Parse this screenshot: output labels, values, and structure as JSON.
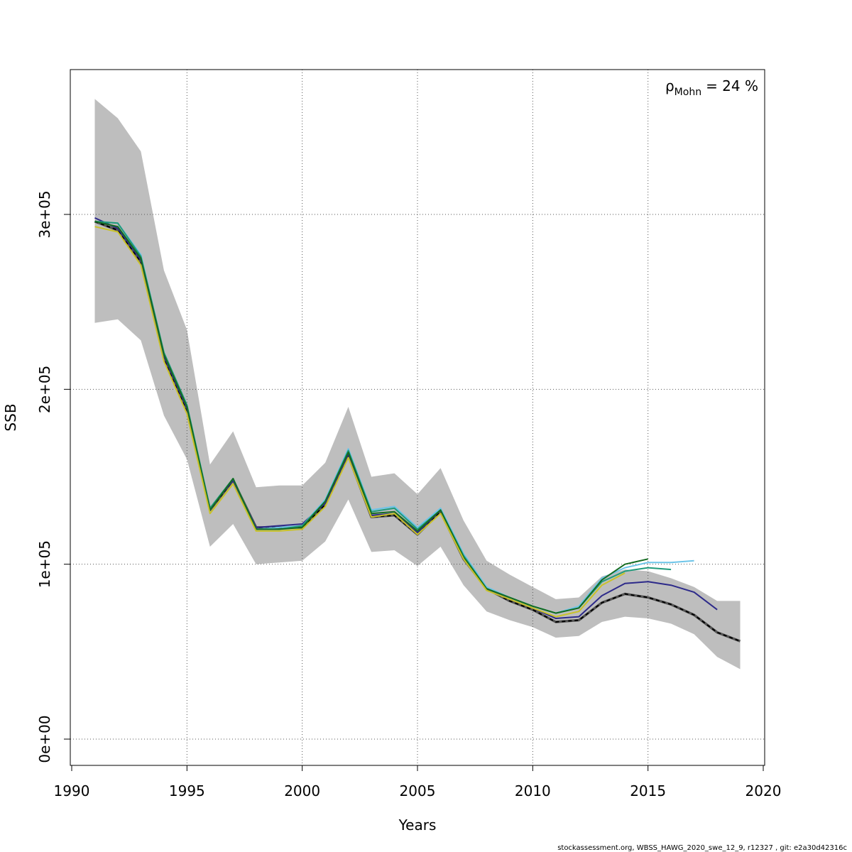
{
  "chart_data": {
    "type": "line",
    "title": "",
    "xlabel": "Years",
    "ylabel": "SSB",
    "xlim": [
      1990,
      2020
    ],
    "ylim": [
      0,
      380000
    ],
    "x_ticks": [
      1990,
      1995,
      2000,
      2005,
      2010,
      2015,
      2020
    ],
    "y_ticks": [
      0,
      100000,
      200000,
      300000
    ],
    "y_tick_labels": [
      "0e+00",
      "1e+05",
      "2e+05",
      "3e+05"
    ],
    "grid": true,
    "annotation": {
      "symbol": "ρ",
      "subscript": "Mohn",
      "text": "= 24 %"
    },
    "credit": "stockassessment.org, WBSS_HAWG_2020_swe_12_9, r12327 , git: e2a30d42316c",
    "confidence_band": {
      "color": "#bebebe",
      "x": [
        1991,
        1992,
        1993,
        1994,
        1995,
        1996,
        1997,
        1998,
        1999,
        2000,
        2001,
        2002,
        2003,
        2004,
        2005,
        2006,
        2007,
        2008,
        2009,
        2010,
        2011,
        2012,
        2013,
        2014,
        2015,
        2016,
        2017,
        2018,
        2019
      ],
      "upper": [
        366000,
        355000,
        336000,
        268000,
        234000,
        157000,
        176000,
        144000,
        145000,
        145000,
        158000,
        190000,
        150000,
        152000,
        140000,
        155000,
        125000,
        102000,
        94000,
        87000,
        80000,
        81000,
        93000,
        97000,
        96000,
        92000,
        87000,
        79000,
        79000
      ],
      "lower": [
        238000,
        240000,
        228000,
        185000,
        160000,
        110000,
        123000,
        100000,
        101000,
        102000,
        113000,
        137000,
        107000,
        108000,
        99000,
        110000,
        88000,
        73000,
        68000,
        64000,
        58000,
        59000,
        67000,
        70000,
        69000,
        66000,
        60000,
        47000,
        40000
      ]
    },
    "series": [
      {
        "color": "#2a2a2a",
        "dashed": true,
        "x": [
          1991,
          1992,
          1993,
          1994,
          1995,
          1996,
          1997,
          1998,
          1999,
          2000,
          2001,
          2002,
          2003,
          2004,
          2005,
          2006,
          2007,
          2008,
          2009,
          2010,
          2011,
          2012,
          2013,
          2014,
          2015,
          2016,
          2017,
          2018,
          2019
        ],
        "values": [
          296000,
          291000,
          273000,
          218000,
          188000,
          131000,
          148000,
          121000,
          121000,
          121000,
          134000,
          162000,
          127000,
          128000,
          117000,
          130000,
          103000,
          86000,
          79000,
          74000,
          67000,
          68000,
          78000,
          83000,
          81000,
          77000,
          71000,
          61000,
          56000
        ]
      },
      {
        "color": "#2d2a8a",
        "dashed": false,
        "x": [
          1991,
          1992,
          1993,
          1994,
          1995,
          1996,
          1997,
          1998,
          1999,
          2000,
          2001,
          2002,
          2003,
          2004,
          2005,
          2006,
          2007,
          2008,
          2009,
          2010,
          2011,
          2012,
          2013,
          2014,
          2015,
          2016,
          2017,
          2018
        ],
        "values": [
          298000,
          292000,
          274000,
          219000,
          189000,
          132000,
          148000,
          121000,
          122000,
          123000,
          135000,
          163000,
          128000,
          129000,
          118000,
          131000,
          104000,
          86000,
          80000,
          75000,
          69000,
          70000,
          82000,
          89000,
          90000,
          88000,
          84000,
          74000
        ]
      },
      {
        "color": "#6cc4e8",
        "dashed": false,
        "x": [
          1991,
          1992,
          1993,
          1994,
          1995,
          1996,
          1997,
          1998,
          1999,
          2000,
          2001,
          2002,
          2003,
          2004,
          2005,
          2006,
          2007,
          2008,
          2009,
          2010,
          2011,
          2012,
          2013,
          2014,
          2015,
          2016,
          2017
        ],
        "values": [
          296000,
          295000,
          277000,
          221000,
          191000,
          132000,
          149000,
          120000,
          121000,
          122000,
          137000,
          166000,
          131000,
          133000,
          121000,
          132000,
          106000,
          87000,
          81000,
          76000,
          72000,
          76000,
          92000,
          98000,
          101000,
          101000,
          102000
        ]
      },
      {
        "color": "#1f9a7a",
        "dashed": false,
        "x": [
          1991,
          1992,
          1993,
          1994,
          1995,
          1996,
          1997,
          1998,
          1999,
          2000,
          2001,
          2002,
          2003,
          2004,
          2005,
          2006,
          2007,
          2008,
          2009,
          2010,
          2011,
          2012,
          2013,
          2014,
          2015,
          2016
        ],
        "values": [
          296000,
          295000,
          276000,
          221000,
          191000,
          132000,
          149000,
          120000,
          120000,
          122000,
          136000,
          165000,
          130000,
          132000,
          120000,
          131000,
          105000,
          86000,
          81000,
          76000,
          72000,
          75000,
          90000,
          96000,
          98000,
          97000
        ]
      },
      {
        "color": "#146b21",
        "dashed": false,
        "x": [
          1991,
          1992,
          1993,
          1994,
          1995,
          1996,
          1997,
          1998,
          1999,
          2000,
          2001,
          2002,
          2003,
          2004,
          2005,
          2006,
          2007,
          2008,
          2009,
          2010,
          2011,
          2012,
          2013,
          2014,
          2015
        ],
        "values": [
          296000,
          293000,
          275000,
          220000,
          190000,
          131000,
          149000,
          120000,
          120000,
          121000,
          136000,
          164000,
          129000,
          130000,
          119000,
          131000,
          104000,
          86000,
          81000,
          76000,
          72000,
          75000,
          91000,
          100000,
          103000
        ]
      },
      {
        "color": "#c9c228",
        "dashed": false,
        "x": [
          1991,
          1992,
          1993,
          1994,
          1995,
          1996,
          1997,
          1998,
          1999,
          2000,
          2001,
          2002,
          2003,
          2004,
          2005,
          2006,
          2007,
          2008,
          2009,
          2010,
          2011,
          2012,
          2013,
          2014
        ],
        "values": [
          293000,
          290000,
          271000,
          216000,
          186000,
          129000,
          146000,
          119000,
          119000,
          120000,
          133000,
          161000,
          127000,
          129000,
          117000,
          129000,
          103000,
          85000,
          80000,
          75000,
          70000,
          73000,
          88000,
          95000
        ]
      }
    ]
  }
}
